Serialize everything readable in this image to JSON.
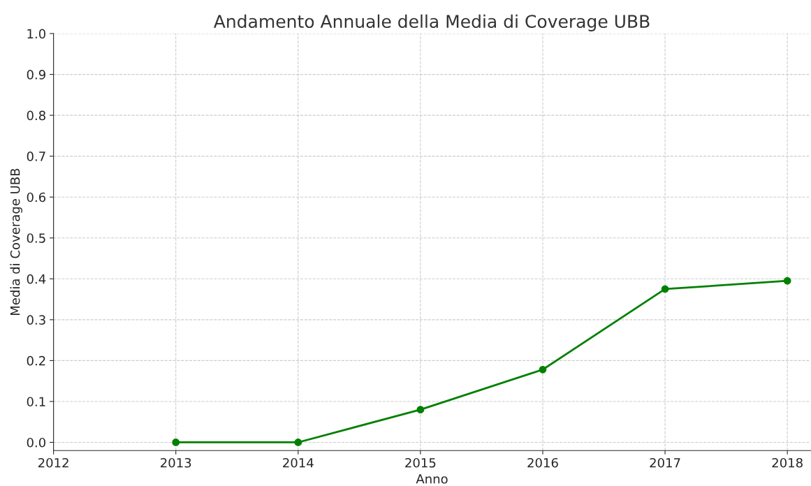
{
  "chart_data": {
    "type": "line",
    "title": "Andamento Annuale della Media di Coverage UBB",
    "xlabel": "Anno",
    "ylabel": "Media di Coverage UBB",
    "x": [
      2013,
      2014,
      2015,
      2016,
      2017,
      2018
    ],
    "series": [
      {
        "color": "#008000",
        "values": [
          0.0,
          0.0,
          0.08,
          0.178,
          0.375,
          0.395
        ]
      }
    ],
    "xlim": [
      2012,
      2018.19
    ],
    "xticks": [
      2012,
      2013,
      2014,
      2015,
      2016,
      2017,
      2018
    ],
    "ylim": [
      -0.02,
      1.0
    ],
    "yticks": [
      {
        "value": 0,
        "label": "0.0"
      },
      0.1,
      0.2,
      0.3,
      0.4,
      0.5,
      0.6,
      0.7,
      0.8,
      0.9,
      {
        "value": 1,
        "label": "1.0"
      }
    ],
    "grid": true,
    "marker": "circle",
    "line_style": "solid"
  }
}
